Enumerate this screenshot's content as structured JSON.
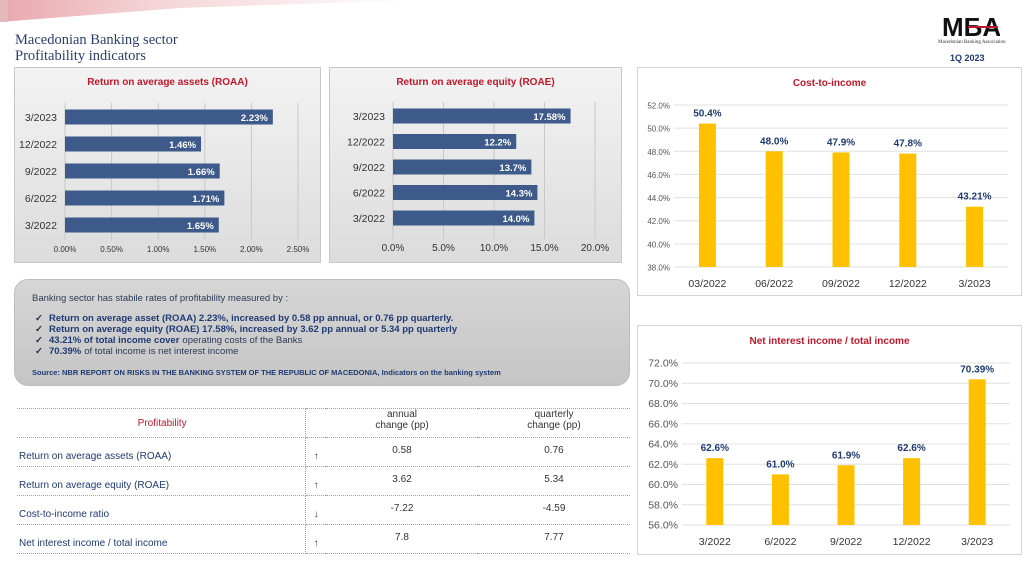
{
  "header": {
    "title_line1": "Macedonian Banking sector",
    "title_line2": "Profitability indicators",
    "logo_text": "MБA",
    "logo_subtext": "Macedonian Banking Association",
    "period": "1Q 2023"
  },
  "colors": {
    "accent": "#c0182b",
    "navy": "#1f3a73",
    "bar_blue": "#3d5a8a",
    "bar_gold": "#ffc000"
  },
  "chart_data": [
    {
      "type": "bar",
      "orientation": "horizontal",
      "title": "Return on average assets (ROAA)",
      "categories": [
        "3/2023",
        "12/2022",
        "9/2022",
        "6/2022",
        "3/2022"
      ],
      "values": [
        2.23,
        1.46,
        1.66,
        1.71,
        1.65
      ],
      "labels": [
        "2.23%",
        "1.46%",
        "1.66%",
        "1.71%",
        "1.65%"
      ],
      "xlim": [
        0,
        2.5
      ],
      "ticks": [
        "0.00%",
        "0.50%",
        "1.00%",
        "1.50%",
        "2.00%",
        "2.50%"
      ]
    },
    {
      "type": "bar",
      "orientation": "horizontal",
      "title": "Return on average equity (ROAE)",
      "categories": [
        "3/2023",
        "12/2022",
        "9/2022",
        "6/2022",
        "3/2022"
      ],
      "values": [
        17.58,
        12.2,
        13.7,
        14.3,
        14.0
      ],
      "labels": [
        "17.58%",
        "12.2%",
        "13.7%",
        "14.3%",
        "14.0%"
      ],
      "xlim": [
        0,
        20
      ],
      "ticks": [
        "0.0%",
        "5.0%",
        "10.0%",
        "15.0%",
        "20.0%"
      ]
    },
    {
      "type": "bar",
      "title": "Cost-to-income",
      "categories": [
        "03/2022",
        "06/2022",
        "09/2022",
        "12/2022",
        "3/2023"
      ],
      "values": [
        50.4,
        48.0,
        47.9,
        47.8,
        43.21
      ],
      "labels": [
        "50.4%",
        "48.0%",
        "47.9%",
        "47.8%",
        "43.21%"
      ],
      "ylim": [
        38,
        52
      ],
      "ticks": [
        "38.0%",
        "40.0%",
        "42.0%",
        "44.0%",
        "46.0%",
        "48.0%",
        "50.0%",
        "52.0%"
      ],
      "grid": true
    },
    {
      "type": "bar",
      "title": "Net interest income / total income",
      "categories": [
        "3/2022",
        "6/2022",
        "9/2022",
        "12/2022",
        "3/2023"
      ],
      "values": [
        62.6,
        61.0,
        61.9,
        62.6,
        70.39
      ],
      "labels": [
        "62.6%",
        "61.0%",
        "61.9%",
        "62.6%",
        "70.39%"
      ],
      "ylim": [
        56,
        72
      ],
      "ticks": [
        "56.0%",
        "58.0%",
        "60.0%",
        "62.0%",
        "64.0%",
        "66.0%",
        "68.0%",
        "70.0%",
        "72.0%"
      ],
      "grid": true
    }
  ],
  "info": {
    "intro": "Banking sector has stabile rates of profitability measured by :",
    "items": [
      {
        "bold": "Return on average asset (ROAA) 2.23%, increased by 0.58 pp annual, or 0.76 pp quarterly.",
        "rest": ""
      },
      {
        "bold": "Return on average equity (ROAE) 17.58%, increased by 3.62 pp annual or 5.34 pp quarterly",
        "rest": ""
      },
      {
        "bold": "43.21% of total income cover",
        "rest": "operating costs of the Banks"
      },
      {
        "bold": "70.39%",
        "rest": "of total income is net interest income"
      }
    ],
    "source": "Source: NBR REPORT ON RISKS IN THE BANKING SYSTEM OF THE REPUBLIC OF MACEDONIA, Indicators on the banking system"
  },
  "table": {
    "header_label": "Profitability",
    "col_annual": "annual\nchange (pp)",
    "col_quarterly": "quarterly\nchange (pp)",
    "rows": [
      {
        "name": "Return on average assets (ROAA)",
        "arrow": "↑",
        "dir": "up",
        "annual": "0.58",
        "quarterly": "0.76"
      },
      {
        "name": "Return on average equity (ROAE)",
        "arrow": "↑",
        "dir": "up",
        "annual": "3.62",
        "quarterly": "5.34"
      },
      {
        "name": "Cost-to-income ratio",
        "arrow": "↓",
        "dir": "down",
        "annual": "-7.22",
        "quarterly": "-4.59"
      },
      {
        "name": "Net interest income / total income",
        "arrow": "↑",
        "dir": "up",
        "annual": "7.8",
        "quarterly": "7.77"
      }
    ]
  }
}
